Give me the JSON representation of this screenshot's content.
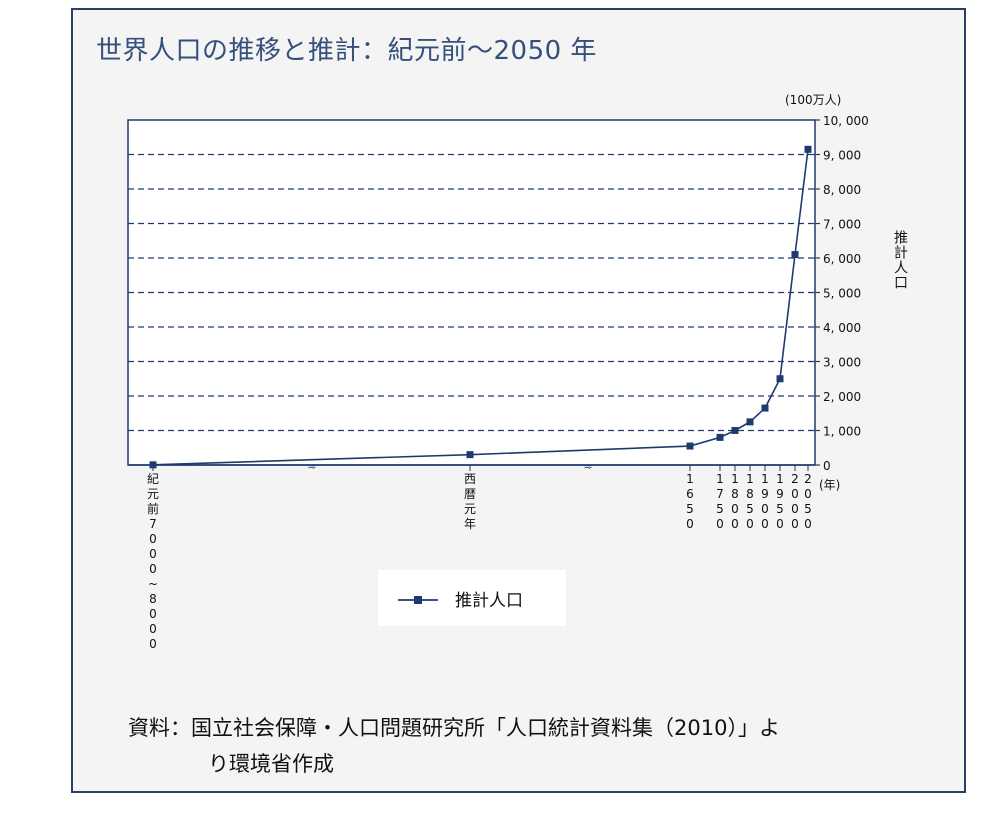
{
  "title": "世界人口の推移と推計：紀元前〜2050 年",
  "source": {
    "line1": "資料：国立社会保障・人口問題研究所「人口統計資料集（2010）」よ",
    "line2": "り環境省作成"
  },
  "colors": {
    "series": "#1f3a6e",
    "frame": "#2c3e63",
    "title": "#35507a"
  },
  "chart_data": {
    "type": "line",
    "title": "世界人口の推移と推計：紀元前〜2050 年",
    "ylabel": "推計人口",
    "yunit": "(100万人)",
    "xunit": "(年)",
    "ylim": [
      0,
      10000
    ],
    "yticks": [
      "10, 000",
      "9, 000",
      "8, 000",
      "7, 000",
      "6, 000",
      "5, 000",
      "4, 000",
      "3, 000",
      "2, 000",
      "1, 000",
      "0"
    ],
    "grid": true,
    "legend_position": "bottom-center",
    "axis_breaks": true,
    "x_labels": [
      "紀元前7000〜8000",
      "西暦元年",
      "1650",
      "1750",
      "1800",
      "1850",
      "1900",
      "1950",
      "2000",
      "2050"
    ],
    "series": [
      {
        "name": "推計人口",
        "values": [
          5,
          300,
          550,
          800,
          1000,
          1250,
          1650,
          2500,
          6100,
          9150
        ]
      }
    ]
  }
}
